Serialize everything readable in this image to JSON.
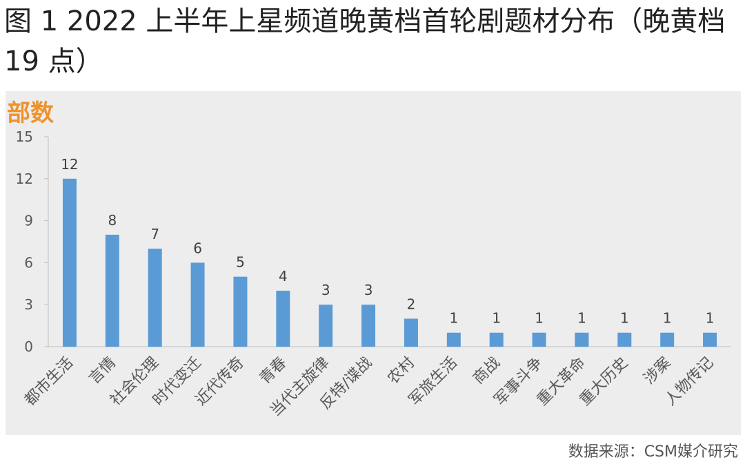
{
  "title": "图 1 2022 上半年上星频道晚黄档首轮剧题材分布（晚黄档 19 点）",
  "source": "数据来源：CSM媒介研究",
  "colors": {
    "bar": "#5b9bd5",
    "unit": "#f0922b",
    "panel": "#ededed"
  },
  "chart_data": {
    "type": "bar",
    "ylabel": "部数",
    "ylim": [
      0,
      15
    ],
    "yticks": [
      0,
      3,
      6,
      9,
      12,
      15
    ],
    "grid": false,
    "categories": [
      "都市生活",
      "言情",
      "社会伦理",
      "时代变迁",
      "近代传奇",
      "青春",
      "当代主旋律",
      "反特/谍战",
      "农村",
      "军旅生活",
      "商战",
      "军事斗争",
      "重大革命",
      "重大历史",
      "涉案",
      "人物传记"
    ],
    "values": [
      12,
      8,
      7,
      6,
      5,
      4,
      3,
      3,
      2,
      1,
      1,
      1,
      1,
      1,
      1,
      1
    ]
  }
}
